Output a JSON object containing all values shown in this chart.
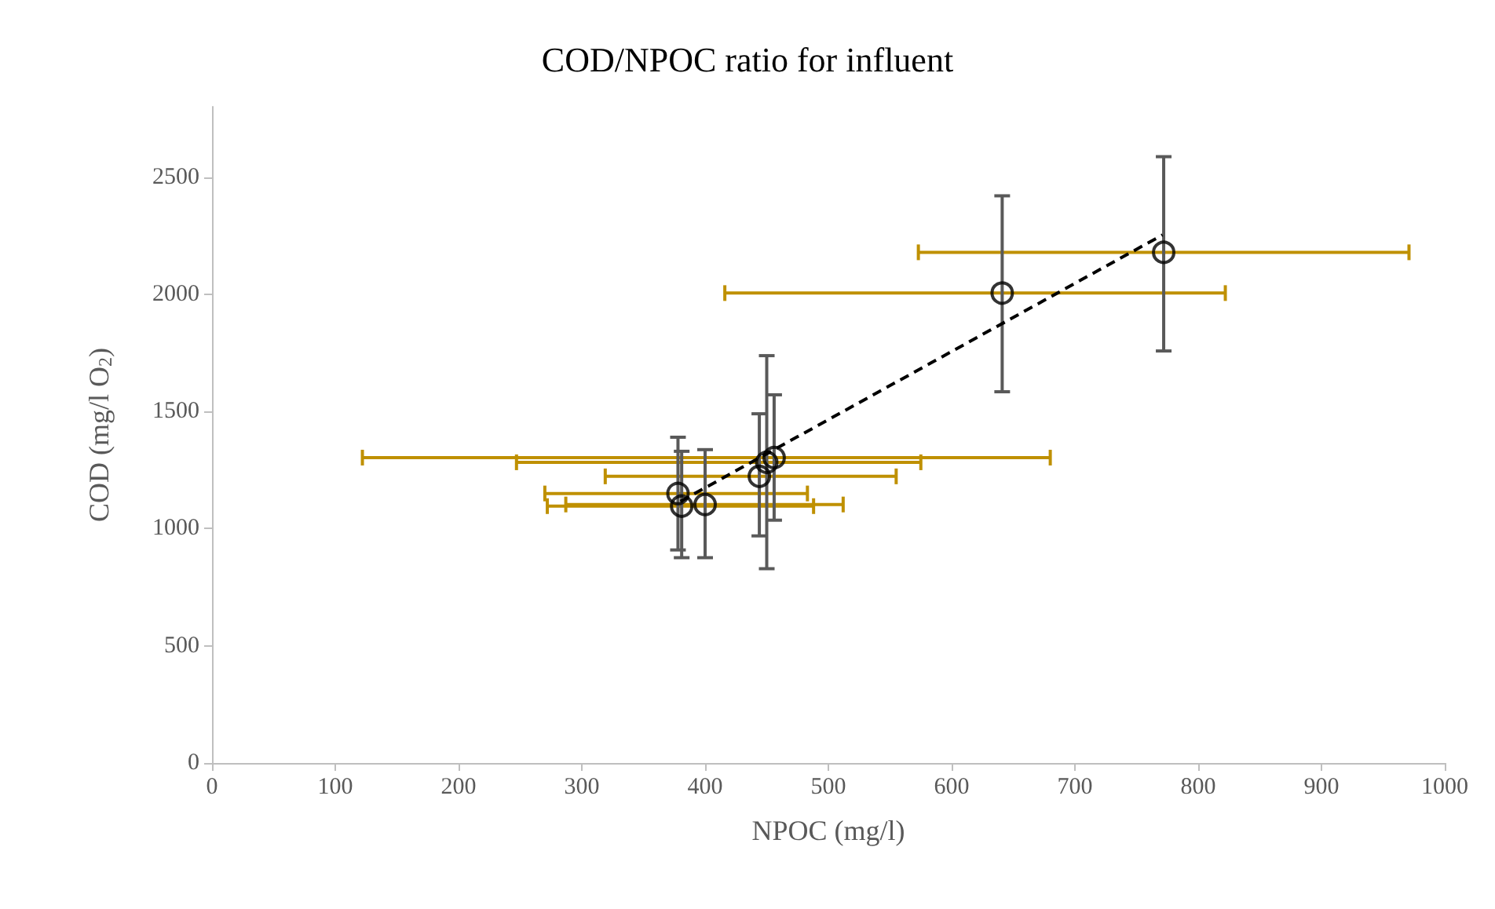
{
  "chart_data": {
    "type": "scatter",
    "title": "COD/NPOC ratio for influent",
    "xlabel": "NPOC (mg/l)",
    "ylabel": "COD (mg/l O$_{2}$)",
    "series": [
      {
        "color": "#000000",
        "marker": "circle",
        "x": [
          378,
          381,
          400,
          444,
          450,
          456,
          641,
          772
        ],
        "values": [
          1150,
          1096,
          1103,
          1223,
          1283,
          1303,
          2005,
          2179
        ],
        "errors": [
          [
            909,
            1390
          ],
          [
            876,
            1330
          ],
          [
            876,
            1337
          ],
          [
            969,
            1490
          ],
          [
            829,
            1738
          ],
          [
            1036,
            1571
          ],
          [
            1584,
            2420
          ],
          [
            1758,
            2587
          ]
        ],
        "xerrors": [
          [
            270,
            483
          ],
          [
            272,
            488
          ],
          [
            287,
            512
          ],
          [
            319,
            555
          ],
          [
            247,
            575
          ],
          [
            122,
            680
          ],
          [
            416,
            822
          ],
          [
            573,
            971
          ]
        ]
      },
      {
        "type": "line",
        "color": "#000000",
        "line_style": "dashed",
        "marker": "none",
        "x": [
          380,
          771
        ],
        "values": [
          1116,
          2253
        ]
      }
    ],
    "xlim": [
      0,
      1000
    ],
    "xticks": [
      0,
      100,
      200,
      300,
      400,
      500,
      600,
      700,
      800,
      900,
      1000
    ],
    "ylim": [
      0,
      2800
    ],
    "yticks": [
      0,
      500,
      1000,
      1500,
      2000,
      2500
    ],
    "grid": false
  }
}
